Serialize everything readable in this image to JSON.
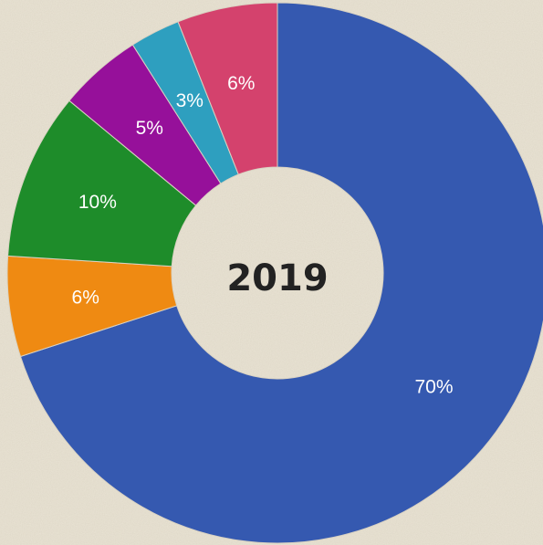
{
  "chart_data": {
    "type": "pie",
    "variant": "donut",
    "center_label": "2019",
    "start": "12 o'clock",
    "direction": "clockwise",
    "slices": [
      {
        "label": "70%",
        "value": 70,
        "color": "#3559b0"
      },
      {
        "label": "6%",
        "value": 6,
        "color": "#ef8a12"
      },
      {
        "label": "10%",
        "value": 10,
        "color": "#1e8c2a"
      },
      {
        "label": "5%",
        "value": 5,
        "color": "#96109a"
      },
      {
        "label": "3%",
        "value": 3,
        "color": "#2e9fbf"
      },
      {
        "label": "6%",
        "value": 6,
        "color": "#d4426d"
      }
    ],
    "background": "#e9e3d4"
  }
}
